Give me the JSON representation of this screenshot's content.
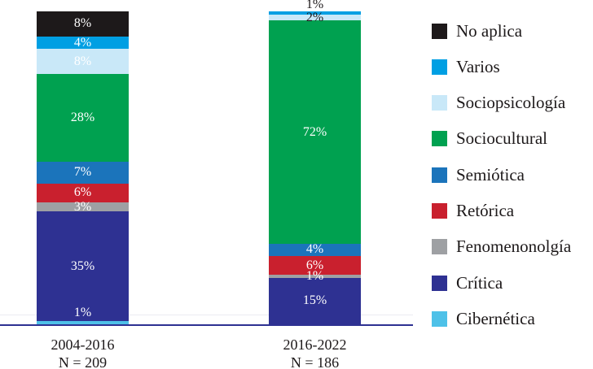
{
  "chart_data": {
    "type": "bar",
    "stacked": true,
    "unit": "%",
    "title": "",
    "xlabel": "",
    "ylabel": "",
    "ylim": [
      0,
      100
    ],
    "grid": false,
    "legend_position": "right",
    "categories": [
      "2004-2016",
      "2016-2022"
    ],
    "category_sublabels": [
      "N = 209",
      "N = 186"
    ],
    "series": [
      {
        "name": "No aplica",
        "color": "#1d191a",
        "values": [
          8,
          0
        ]
      },
      {
        "name": "Varios",
        "color": "#009fe3",
        "values": [
          4,
          1
        ]
      },
      {
        "name": "Sociopsicología",
        "color": "#c9e8f8",
        "values": [
          8,
          2
        ]
      },
      {
        "name": "Sociocultural",
        "color": "#00a150",
        "values": [
          28,
          72
        ]
      },
      {
        "name": "Semiótica",
        "color": "#1b74bb",
        "values": [
          7,
          4
        ]
      },
      {
        "name": "Retórica",
        "color": "#c9202e",
        "values": [
          6,
          6
        ]
      },
      {
        "name": "Fenomenonolgía",
        "color": "#9ea0a3",
        "values": [
          3,
          1
        ]
      },
      {
        "name": "Crítica",
        "color": "#2e3192",
        "values": [
          35,
          15
        ]
      },
      {
        "name": "Cibernética",
        "color": "#4ec1e8",
        "values": [
          1,
          0
        ]
      }
    ],
    "bar_label_color": "#ffffff",
    "label_overrides": [
      {
        "series": "Varios",
        "bar_index": 1,
        "position": "above",
        "color": "#1d191a"
      },
      {
        "series": "Sociopsicología",
        "bar_index": 1,
        "color": "#1d191a"
      },
      {
        "series": "Cibernética",
        "bar_index": 0,
        "offset_y": -12
      }
    ],
    "axis_color": "#2e3192",
    "gridline_color": "#ebebf2",
    "text_color": "#1d191a"
  }
}
